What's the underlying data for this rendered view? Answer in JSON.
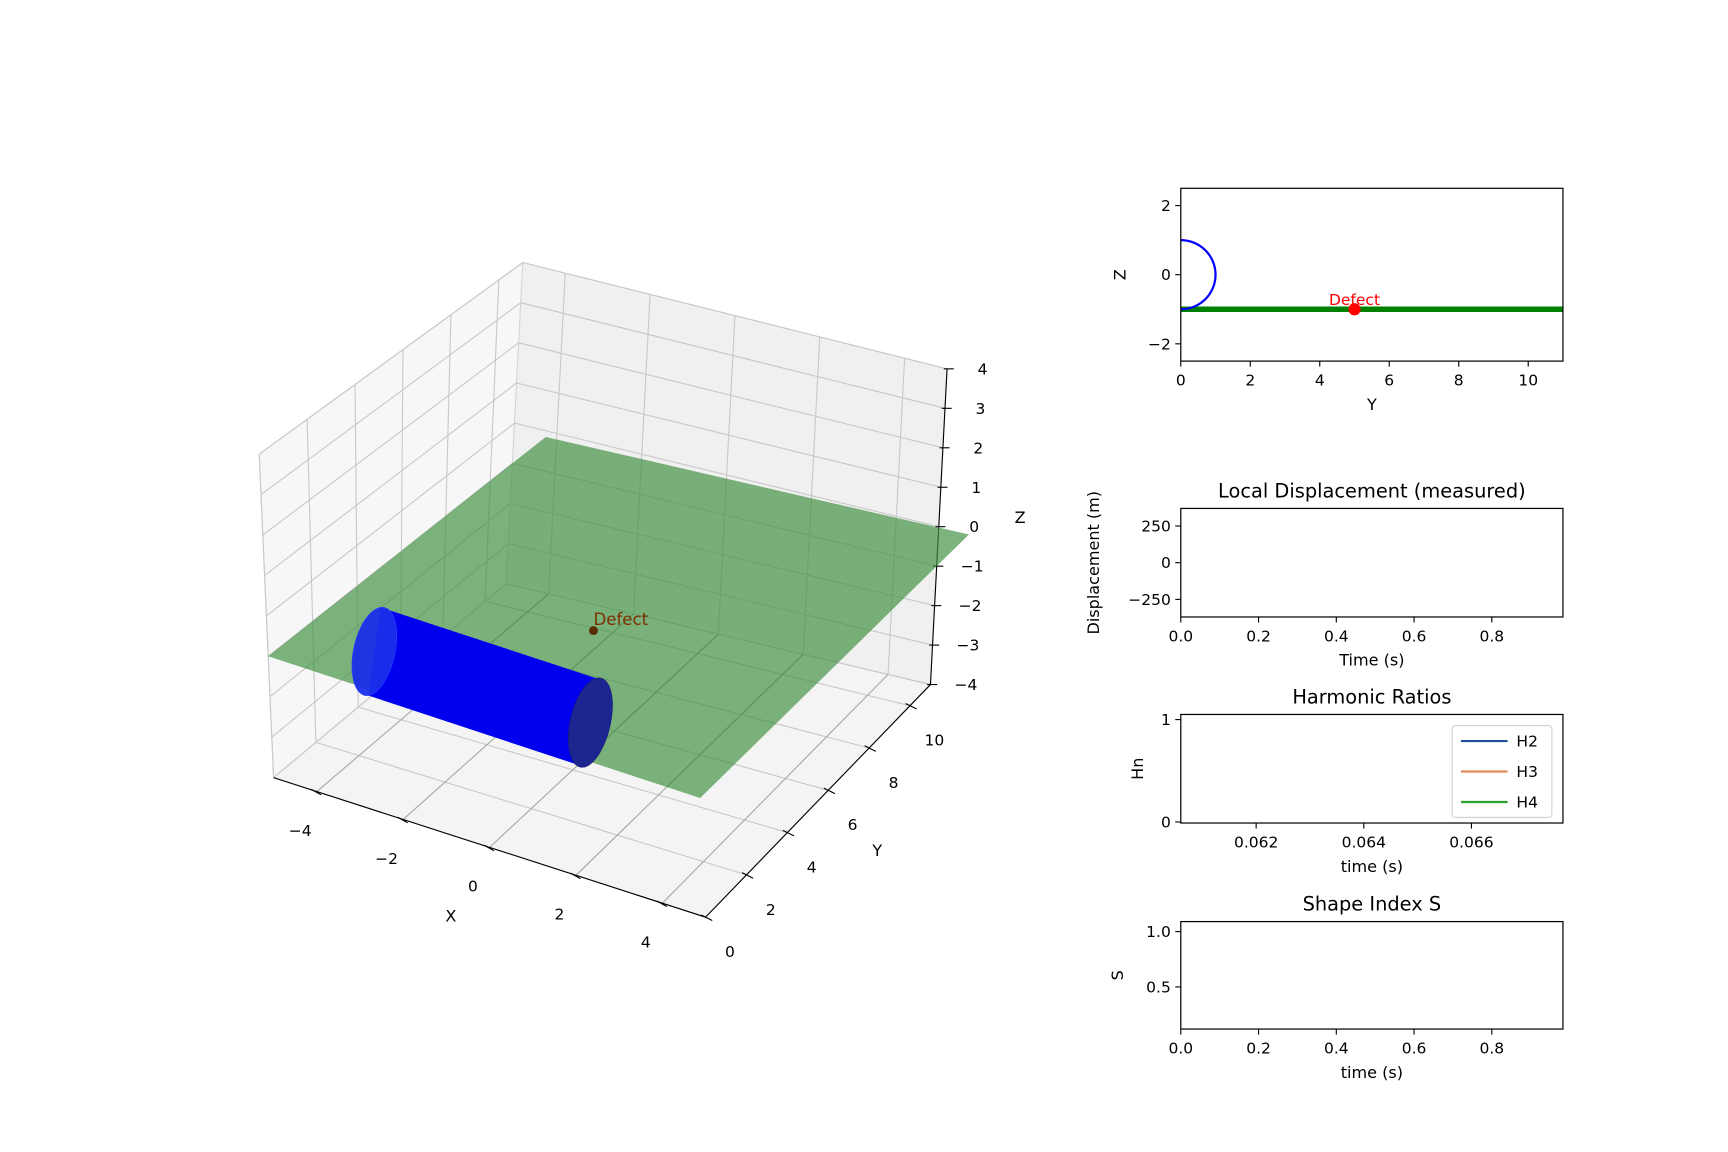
{
  "chart_data": [
    {
      "type": "3d-surface",
      "xlabel": "X",
      "ylabel": "Y",
      "zlabel": "Z",
      "xlim": [
        -5,
        5
      ],
      "ylim": [
        0,
        11
      ],
      "zlim": [
        -4,
        4
      ],
      "xticks": [
        {
          "v": -4,
          "t": "−4"
        },
        {
          "v": -2,
          "t": "−2"
        },
        {
          "v": 0,
          "t": "0"
        },
        {
          "v": 2,
          "t": "2"
        },
        {
          "v": 4,
          "t": "4"
        }
      ],
      "yticks": [
        {
          "v": 0,
          "t": "0"
        },
        {
          "v": 2,
          "t": "2"
        },
        {
          "v": 4,
          "t": "4"
        },
        {
          "v": 6,
          "t": "6"
        },
        {
          "v": 8,
          "t": "8"
        },
        {
          "v": 10,
          "t": "10"
        }
      ],
      "zticks": [
        {
          "v": 4,
          "t": "4"
        },
        {
          "v": 3,
          "t": "3"
        },
        {
          "v": 2,
          "t": "2"
        },
        {
          "v": 1,
          "t": "1"
        },
        {
          "v": 0,
          "t": "0"
        },
        {
          "v": -1,
          "t": "−1"
        },
        {
          "v": -2,
          "t": "−2"
        },
        {
          "v": -3,
          "t": "−3"
        },
        {
          "v": -4,
          "t": "−4"
        }
      ],
      "ground_plane": {
        "z": -1,
        "x_range": [
          -5,
          5
        ],
        "y_range": [
          0,
          12.5
        ],
        "color": "#3f8f3f"
      },
      "cylinder": {
        "axis": "x",
        "x_range": [
          -2.5,
          2.5
        ],
        "center_y": 0,
        "center_z": 0,
        "radius": 1,
        "color": "#0000ee"
      },
      "defect": {
        "x": 0,
        "y": 5,
        "z": -1,
        "label": "Defect",
        "color": "#5a2a00"
      }
    },
    {
      "type": "line",
      "xlabel": "Y",
      "ylabel": "Z",
      "xlim": [
        0,
        11
      ],
      "ylim": [
        -2.5,
        2.5
      ],
      "xticks": [
        {
          "v": 0,
          "t": "0"
        },
        {
          "v": 2,
          "t": "2"
        },
        {
          "v": 4,
          "t": "4"
        },
        {
          "v": 6,
          "t": "6"
        },
        {
          "v": 8,
          "t": "8"
        },
        {
          "v": 10,
          "t": "10"
        }
      ],
      "yticks": [
        {
          "v": 2,
          "t": "2"
        },
        {
          "v": 0,
          "t": "0"
        },
        {
          "v": -2,
          "t": "−2"
        }
      ],
      "ground_line": {
        "z": -1,
        "color": "#008000"
      },
      "pipe_section": {
        "center": [
          0,
          0
        ],
        "radius": 1,
        "color": "#0000ff"
      },
      "defect": {
        "y": 5,
        "z": -1,
        "label": "Defect",
        "color": "#ff0000"
      }
    },
    {
      "type": "line",
      "title": "Local Displacement (measured)",
      "xlabel": "Time (s)",
      "ylabel": "Displacement (m)",
      "xlim": [
        0,
        0.983
      ],
      "ylim": [
        -370,
        370
      ],
      "xticks": [
        {
          "v": 0,
          "t": "0.0"
        },
        {
          "v": 0.2,
          "t": "0.2"
        },
        {
          "v": 0.4,
          "t": "0.4"
        },
        {
          "v": 0.6,
          "t": "0.6"
        },
        {
          "v": 0.8,
          "t": "0.8"
        }
      ],
      "yticks": [
        {
          "v": 250,
          "t": "250"
        },
        {
          "v": 0,
          "t": "0"
        },
        {
          "v": -250,
          "t": "−250"
        }
      ],
      "series": []
    },
    {
      "type": "line",
      "title": "Harmonic Ratios",
      "xlabel": "time (s)",
      "ylabel": "Hn",
      "xlim": [
        0.0606,
        0.0677
      ],
      "ylim": [
        -0.01,
        1.05
      ],
      "xticks": [
        {
          "v": 0.062,
          "t": "0.062"
        },
        {
          "v": 0.064,
          "t": "0.064"
        },
        {
          "v": 0.066,
          "t": "0.066"
        }
      ],
      "yticks": [
        {
          "v": 1,
          "t": "1"
        },
        {
          "v": 0,
          "t": "0"
        }
      ],
      "legend": "top-right",
      "series": [
        {
          "name": "H2",
          "color": "#1f4e9c",
          "values": []
        },
        {
          "name": "H3",
          "color": "#e08a5a",
          "values": []
        },
        {
          "name": "H4",
          "color": "#2ca02c",
          "values": []
        }
      ]
    },
    {
      "type": "line",
      "title": "Shape Index S",
      "xlabel": "time (s)",
      "ylabel": "S",
      "xlim": [
        0,
        0.983
      ],
      "ylim": [
        0.12,
        1.09
      ],
      "xticks": [
        {
          "v": 0,
          "t": "0.0"
        },
        {
          "v": 0.2,
          "t": "0.2"
        },
        {
          "v": 0.4,
          "t": "0.4"
        },
        {
          "v": 0.6,
          "t": "0.6"
        },
        {
          "v": 0.8,
          "t": "0.8"
        }
      ],
      "yticks": [
        {
          "v": 1.0,
          "t": "1.0"
        },
        {
          "v": 0.5,
          "t": "0.5"
        }
      ],
      "series": []
    }
  ]
}
